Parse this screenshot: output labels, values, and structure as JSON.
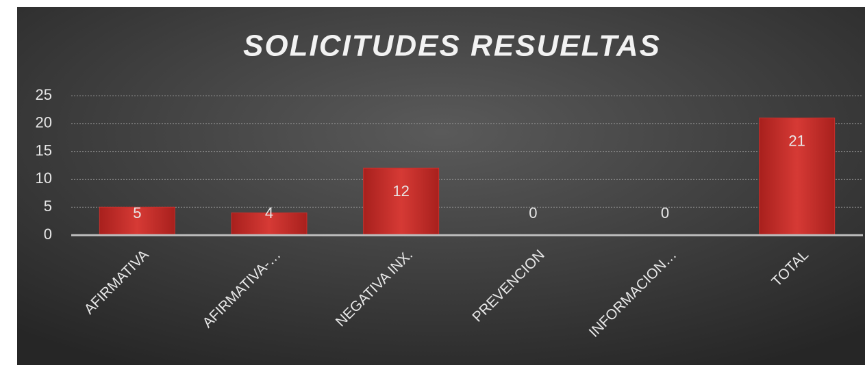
{
  "chart_data": {
    "type": "bar",
    "title": "SOLICITUDES RESUELTAS",
    "categories": [
      "AFIRMATIVA",
      "AFIRMATIVA-…",
      "NEGATIVA INX.",
      "PREVENCION",
      "INFORMACION…",
      "TOTAL"
    ],
    "values": [
      5,
      4,
      12,
      0,
      0,
      21
    ],
    "color": "#c9302c",
    "ylim": [
      0,
      25
    ],
    "yticks": [
      0,
      5,
      10,
      15,
      20,
      25
    ],
    "grid": true
  }
}
